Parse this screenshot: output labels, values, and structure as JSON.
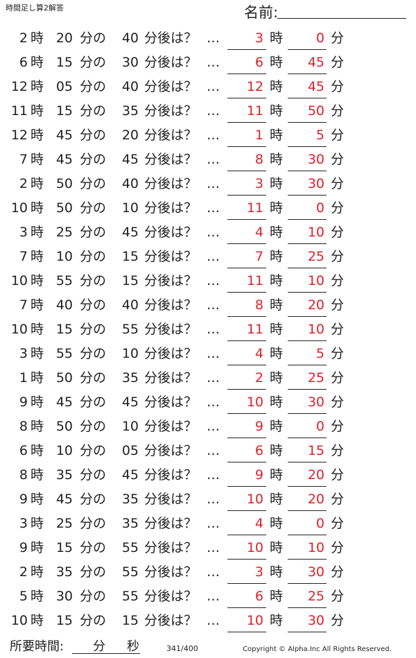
{
  "header": {
    "title": "時間足し算2解答",
    "name_label": "名前:"
  },
  "labels": {
    "hour": "時",
    "min_of": "分の",
    "after": "分後は？",
    "dots": "…",
    "min": "分"
  },
  "rows": [
    [
      "2",
      "20",
      "40",
      "3",
      "0"
    ],
    [
      "6",
      "15",
      "30",
      "6",
      "45"
    ],
    [
      "12",
      "05",
      "40",
      "12",
      "45"
    ],
    [
      "11",
      "15",
      "35",
      "11",
      "50"
    ],
    [
      "12",
      "45",
      "20",
      "1",
      "5"
    ],
    [
      "7",
      "45",
      "45",
      "8",
      "30"
    ],
    [
      "2",
      "50",
      "40",
      "3",
      "30"
    ],
    [
      "10",
      "50",
      "10",
      "11",
      "0"
    ],
    [
      "3",
      "25",
      "45",
      "4",
      "10"
    ],
    [
      "7",
      "10",
      "15",
      "7",
      "25"
    ],
    [
      "10",
      "55",
      "15",
      "11",
      "10"
    ],
    [
      "7",
      "40",
      "40",
      "8",
      "20"
    ],
    [
      "10",
      "15",
      "55",
      "11",
      "10"
    ],
    [
      "3",
      "55",
      "10",
      "4",
      "5"
    ],
    [
      "1",
      "50",
      "35",
      "2",
      "25"
    ],
    [
      "9",
      "45",
      "45",
      "10",
      "30"
    ],
    [
      "8",
      "50",
      "10",
      "9",
      "0"
    ],
    [
      "6",
      "10",
      "05",
      "6",
      "15"
    ],
    [
      "8",
      "35",
      "45",
      "9",
      "20"
    ],
    [
      "9",
      "45",
      "35",
      "10",
      "20"
    ],
    [
      "3",
      "25",
      "35",
      "4",
      "0"
    ],
    [
      "9",
      "15",
      "55",
      "10",
      "10"
    ],
    [
      "2",
      "35",
      "55",
      "3",
      "30"
    ],
    [
      "5",
      "30",
      "55",
      "6",
      "25"
    ],
    [
      "10",
      "15",
      "15",
      "10",
      "30"
    ]
  ],
  "footer": {
    "time_label": "所要時間:",
    "min": "分",
    "sec": "秒",
    "page": "341/400",
    "copyright": "Copyright ©  Alpha.Inc All Rights Reserved."
  }
}
